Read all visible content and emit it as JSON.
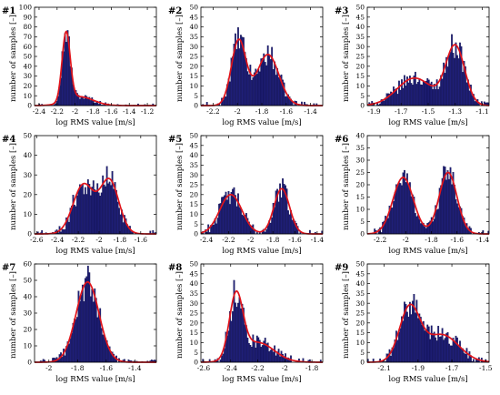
{
  "figure": {
    "colors": {
      "bar_fill": "#1f1f78",
      "bar_edge": "#0c0c45",
      "curve": "#e0141b",
      "axis": "#000000",
      "background": "#ffffff"
    }
  },
  "chart_data": [
    {
      "type": "bar",
      "panel_label": "#1",
      "xlabel": "log RMS value [m/s]",
      "ylabel": "number of samples [–]",
      "xlim": [
        -2.45,
        -1.1
      ],
      "ylim": [
        0,
        100
      ],
      "xticks": [
        -2.4,
        -2.2,
        -2,
        -1.8,
        -1.6,
        -1.4,
        -1.2
      ],
      "xtick_labels": [
        "-2.4",
        "-2.2",
        "-2",
        "-1.8",
        "-1.6",
        "-1.4",
        "-1.2"
      ],
      "yticks": [
        0,
        10,
        20,
        30,
        40,
        50,
        60,
        70,
        80,
        90,
        100
      ],
      "ytick_labels": [
        "0",
        "10",
        "20",
        "30",
        "40",
        "50",
        "60",
        "70",
        "80",
        "90",
        "100"
      ],
      "components": [
        {
          "mean": -2.1,
          "sd": 0.045,
          "peak": 70
        },
        {
          "mean": -1.95,
          "sd": 0.15,
          "peak": 9
        }
      ],
      "tail_noise": 3
    },
    {
      "type": "bar",
      "panel_label": "#2",
      "xlabel": "log RMS value [m/s]",
      "ylabel": "number of samples [–]",
      "xlim": [
        -2.3,
        -1.3
      ],
      "ylim": [
        0,
        50
      ],
      "xticks": [
        -2.2,
        -2,
        -1.8,
        -1.6,
        -1.4
      ],
      "xtick_labels": [
        "-2.2",
        "-2",
        "-1.8",
        "-1.6",
        "-1.4"
      ],
      "yticks": [
        0,
        5,
        10,
        15,
        20,
        25,
        30,
        35,
        40,
        45,
        50
      ],
      "ytick_labels": [
        "0",
        "5",
        "10",
        "15",
        "20",
        "25",
        "30",
        "35",
        "40",
        "45",
        "50"
      ],
      "components": [
        {
          "mean": -1.99,
          "sd": 0.06,
          "peak": 33
        },
        {
          "mean": -1.75,
          "sd": 0.09,
          "peak": 26
        }
      ],
      "tail_noise": 3
    },
    {
      "type": "bar",
      "panel_label": "#3",
      "xlabel": "log RMS value [m/s]",
      "ylabel": "number of samples [–]",
      "xlim": [
        -1.95,
        -1.05
      ],
      "ylim": [
        0,
        50
      ],
      "xticks": [
        -1.9,
        -1.7,
        -1.5,
        -1.3,
        -1.1
      ],
      "xtick_labels": [
        "-1.9",
        "-1.7",
        "-1.5",
        "-1.3",
        "-1.1"
      ],
      "yticks": [
        0,
        5,
        10,
        15,
        20,
        25,
        30,
        35,
        40,
        45,
        50
      ],
      "ytick_labels": [
        "0",
        "5",
        "10",
        "15",
        "20",
        "25",
        "30",
        "35",
        "40",
        "45",
        "50"
      ],
      "components": [
        {
          "mean": -1.6,
          "sd": 0.13,
          "peak": 14
        },
        {
          "mean": -1.3,
          "sd": 0.07,
          "peak": 30
        }
      ],
      "tail_noise": 3
    },
    {
      "type": "bar",
      "panel_label": "#4",
      "xlabel": "log RMS value [m/s]",
      "ylabel": "number of samples [–]",
      "xlim": [
        -2.62,
        -1.45
      ],
      "ylim": [
        0,
        50
      ],
      "xticks": [
        -2.6,
        -2.4,
        -2.2,
        -2,
        -1.8,
        -1.6
      ],
      "xtick_labels": [
        "-2.6",
        "-2.4",
        "-2.2",
        "-2",
        "-1.8",
        "-1.6"
      ],
      "yticks": [
        0,
        10,
        20,
        30,
        40,
        50
      ],
      "ytick_labels": [
        "0",
        "10",
        "20",
        "30",
        "40",
        "50"
      ],
      "components": [
        {
          "mean": -2.15,
          "sd": 0.1,
          "peak": 25
        },
        {
          "mean": -1.9,
          "sd": 0.09,
          "peak": 27
        }
      ],
      "tail_noise": 4
    },
    {
      "type": "bar",
      "panel_label": "#5",
      "xlabel": "log RMS value [m/s]",
      "ylabel": "number of samples [–]",
      "xlim": [
        -2.45,
        -1.35
      ],
      "ylim": [
        0,
        50
      ],
      "xticks": [
        -2.4,
        -2.2,
        -2,
        -1.8,
        -1.6,
        -1.4
      ],
      "xtick_labels": [
        "-2.4",
        "-2.2",
        "-2",
        "-1.8",
        "-1.6",
        "-1.4"
      ],
      "yticks": [
        0,
        5,
        10,
        15,
        20,
        25,
        30,
        35,
        40,
        45,
        50
      ],
      "ytick_labels": [
        "0",
        "5",
        "10",
        "15",
        "20",
        "25",
        "30",
        "35",
        "40",
        "45",
        "50"
      ],
      "components": [
        {
          "mean": -2.18,
          "sd": 0.1,
          "peak": 20
        },
        {
          "mean": -1.72,
          "sd": 0.07,
          "peak": 23
        }
      ],
      "tail_noise": 4
    },
    {
      "type": "bar",
      "panel_label": "#6",
      "xlabel": "log RMS value [m/s]",
      "ylabel": "number of samples [–]",
      "xlim": [
        -2.3,
        -1.35
      ],
      "ylim": [
        0,
        40
      ],
      "xticks": [
        -2.2,
        -2,
        -1.8,
        -1.6,
        -1.4
      ],
      "xtick_labels": [
        "-2.2",
        "-2",
        "-1.8",
        "-1.6",
        "-1.4"
      ],
      "yticks": [
        0,
        5,
        10,
        15,
        20,
        25,
        30,
        35,
        40
      ],
      "ytick_labels": [
        "0",
        "5",
        "10",
        "15",
        "20",
        "25",
        "30",
        "35",
        "40"
      ],
      "components": [
        {
          "mean": -2.02,
          "sd": 0.08,
          "peak": 23
        },
        {
          "mean": -1.67,
          "sd": 0.07,
          "peak": 25
        }
      ],
      "tail_noise": 3
    },
    {
      "type": "bar",
      "panel_label": "#7",
      "xlabel": "log RMS value [m/s]",
      "ylabel": "number of samples [–]",
      "xlim": [
        -2.1,
        -1.25
      ],
      "ylim": [
        0,
        60
      ],
      "xticks": [
        -2,
        -1.8,
        -1.6,
        -1.4
      ],
      "xtick_labels": [
        "-2",
        "-1.8",
        "-1.6",
        "-1.4"
      ],
      "yticks": [
        0,
        10,
        20,
        30,
        40,
        50,
        60
      ],
      "ytick_labels": [
        "0",
        "10",
        "20",
        "30",
        "40",
        "50",
        "60"
      ],
      "components": [
        {
          "mean": -1.73,
          "sd": 0.08,
          "peak": 49
        }
      ],
      "tail_noise": 4
    },
    {
      "type": "bar",
      "panel_label": "#8",
      "xlabel": "log RMS value [m/s]",
      "ylabel": "number of samples [–]",
      "xlim": [
        -2.62,
        -1.72
      ],
      "ylim": [
        0,
        50
      ],
      "xticks": [
        -2.6,
        -2.4,
        -2.2,
        -2,
        -1.8
      ],
      "xtick_labels": [
        "-2.6",
        "-2.4",
        "-2.2",
        "-2",
        "-1.8"
      ],
      "yticks": [
        0,
        5,
        10,
        15,
        20,
        25,
        30,
        35,
        40,
        45,
        50
      ],
      "ytick_labels": [
        "0",
        "5",
        "10",
        "15",
        "20",
        "25",
        "30",
        "35",
        "40",
        "45",
        "50"
      ],
      "components": [
        {
          "mean": -2.36,
          "sd": 0.05,
          "peak": 32
        },
        {
          "mean": -2.2,
          "sd": 0.12,
          "peak": 10
        }
      ],
      "tail_noise": 4
    },
    {
      "type": "bar",
      "panel_label": "#9",
      "xlabel": "log RMS value [m/s]",
      "ylabel": "number of samples [–]",
      "xlim": [
        -2.2,
        -1.48
      ],
      "ylim": [
        0,
        50
      ],
      "xticks": [
        -2.1,
        -1.9,
        -1.7,
        -1.5
      ],
      "xtick_labels": [
        "-2.1",
        "-1.9",
        "-1.7",
        "-1.5"
      ],
      "yticks": [
        0,
        5,
        10,
        15,
        20,
        25,
        30,
        35,
        40,
        45,
        50
      ],
      "ytick_labels": [
        "0",
        "5",
        "10",
        "15",
        "20",
        "25",
        "30",
        "35",
        "40",
        "45",
        "50"
      ],
      "components": [
        {
          "mean": -1.95,
          "sd": 0.06,
          "peak": 27
        },
        {
          "mean": -1.76,
          "sd": 0.1,
          "peak": 14
        }
      ],
      "tail_noise": 4
    }
  ]
}
